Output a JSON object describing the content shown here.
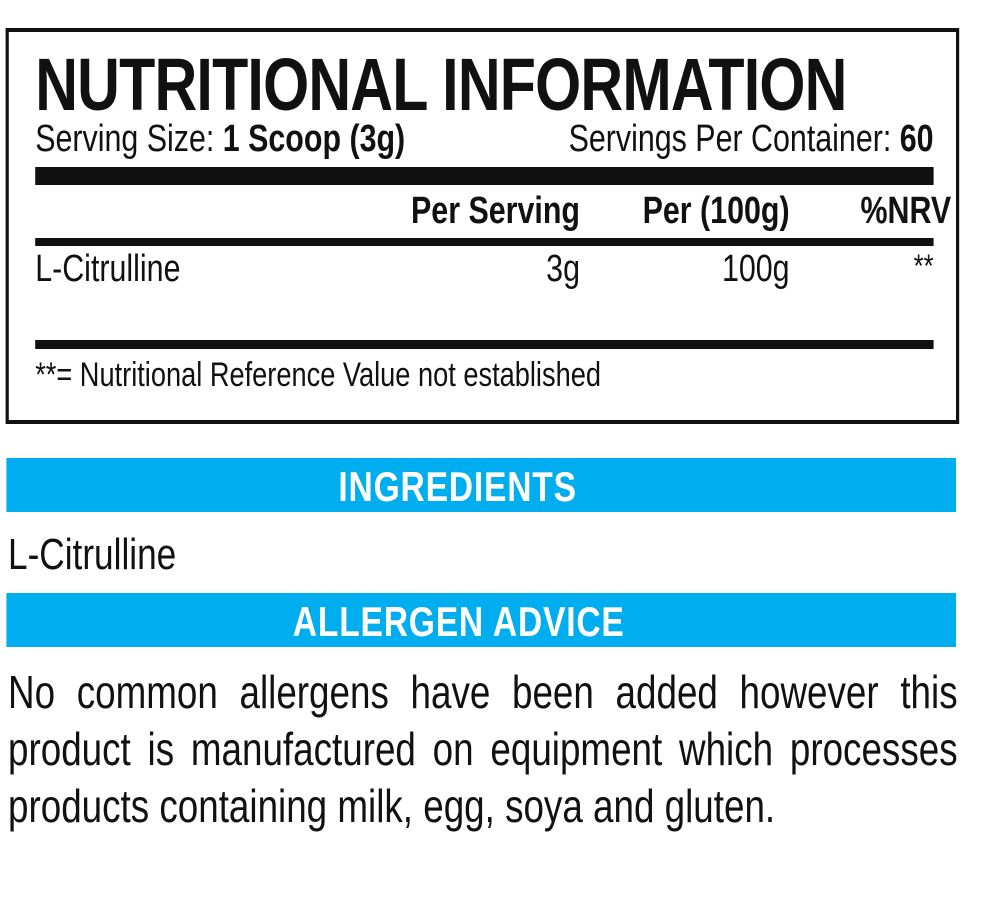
{
  "nutrition": {
    "title": "NUTRITIONAL INFORMATION",
    "serving_size_label": "Serving Size:",
    "serving_size_value": "1 Scoop (3g)",
    "servings_per_container_label": "Servings Per Container:",
    "servings_per_container_value": "60",
    "columns": [
      "Per Serving",
      "Per (100g)",
      "%NRV"
    ],
    "rows": [
      {
        "name": "L-Citrulline",
        "per_serving": "3g",
        "per_100g": "100g",
        "nrv": "**"
      }
    ],
    "footnote": "**= Nutritional Reference Value not established"
  },
  "ingredients": {
    "heading": "INGREDIENTS",
    "text": "L-Citrulline"
  },
  "allergen": {
    "heading": "ALLERGEN ADVICE",
    "text": "No common allergens have been added however this product is manufactured on equipment which processes products containing milk, egg, soya and gluten."
  },
  "colors": {
    "accent": "#00AEEF",
    "text": "#111111"
  }
}
